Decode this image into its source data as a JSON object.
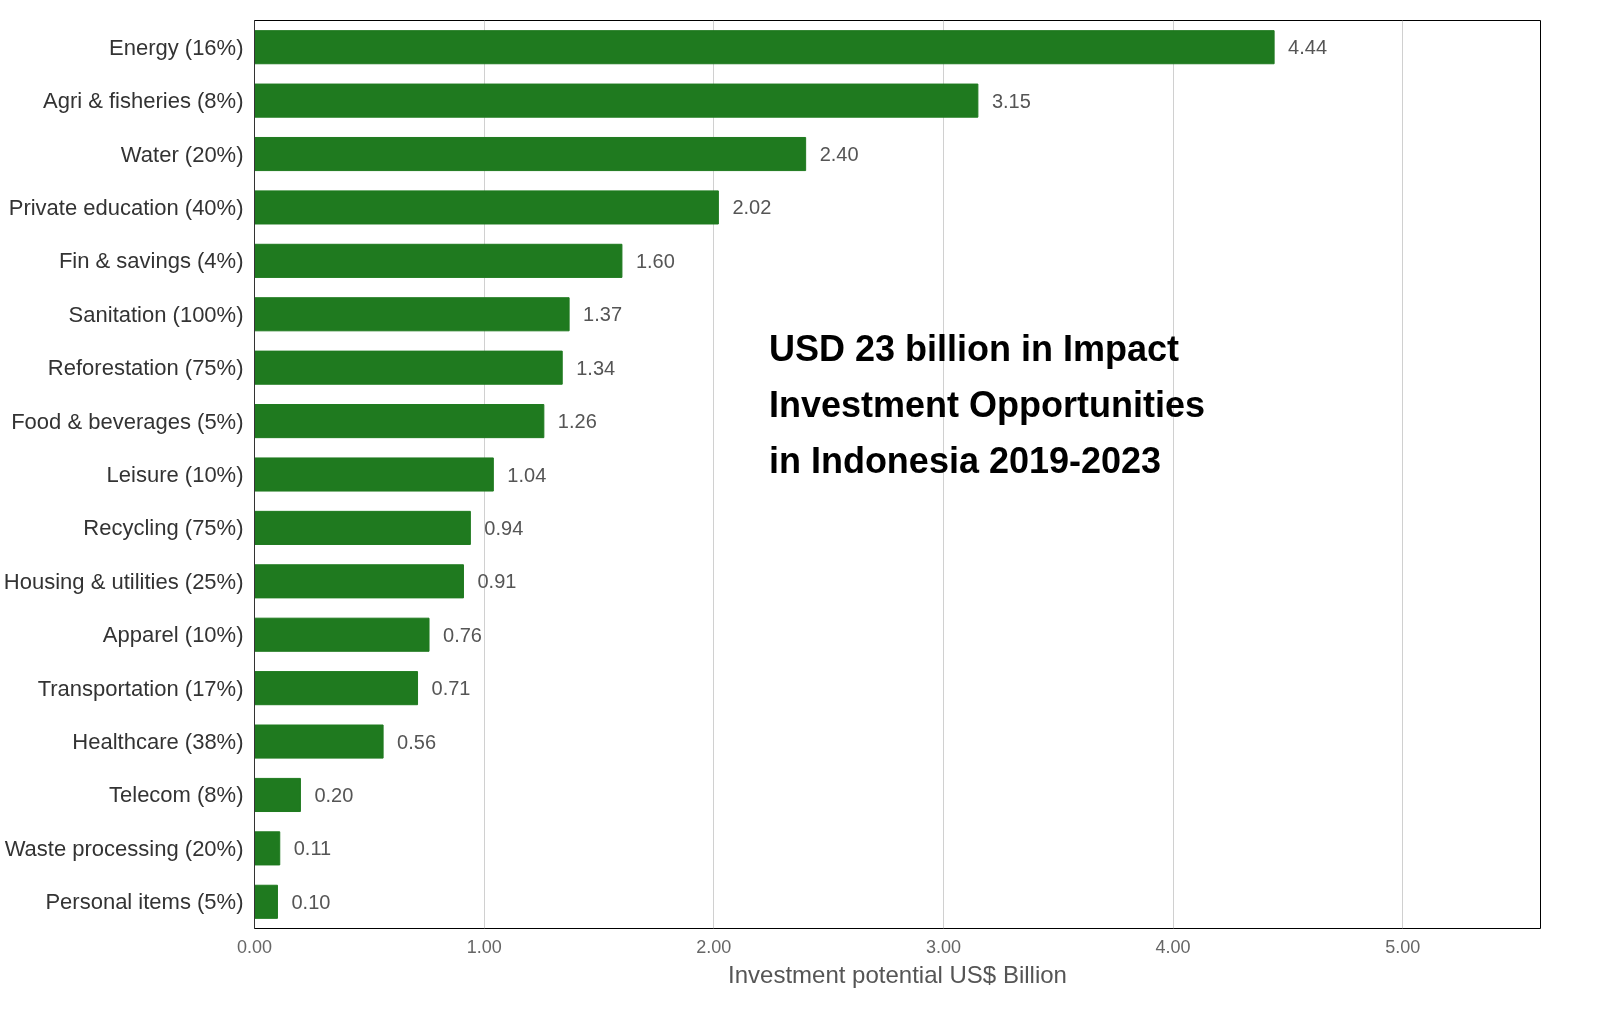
{
  "chart_data": {
    "type": "bar",
    "orientation": "horizontal",
    "xlabel": "Investment potential US$ Billion",
    "categories": [
      "Energy (16%)",
      "Agri & fisheries (8%)",
      "Water (20%)",
      "Private education (40%)",
      "Fin & savings (4%)",
      "Sanitation (100%)",
      "Reforestation (75%)",
      "Food & beverages (5%)",
      "Leisure (10%)",
      "Recycling (75%)",
      "Housing & utilities (25%)",
      "Apparel (10%)",
      "Transportation (17%)",
      "Healthcare (38%)",
      "Telecom (8%)",
      "Waste processing (20%)",
      "Personal items (5%)"
    ],
    "values": [
      4.44,
      3.15,
      2.4,
      2.02,
      1.6,
      1.37,
      1.34,
      1.26,
      1.04,
      0.94,
      0.91,
      0.76,
      0.71,
      0.56,
      0.2,
      0.11,
      0.1
    ],
    "value_labels": [
      "4.44",
      "3.15",
      "2.40",
      "2.02",
      "1.60",
      "1.37",
      "1.34",
      "1.26",
      "1.04",
      "0.94",
      "0.91",
      "0.76",
      "0.71",
      "0.56",
      "0.20",
      "0.11",
      "0.10"
    ],
    "color": "#1f7a1f",
    "xlim": [
      0,
      5.6
    ],
    "xticks": [
      {
        "value": 0,
        "label": "0.00"
      },
      {
        "value": 1,
        "label": "1.00"
      },
      {
        "value": 2,
        "label": "2.00"
      },
      {
        "value": 3,
        "label": "3.00"
      },
      {
        "value": 4,
        "label": "4.00"
      },
      {
        "value": 5,
        "label": "5.00"
      }
    ],
    "grid": "x",
    "annotations": [
      "USD 23 billion in Impact Investment Opportunities in Indonesia 2019-2023"
    ]
  }
}
